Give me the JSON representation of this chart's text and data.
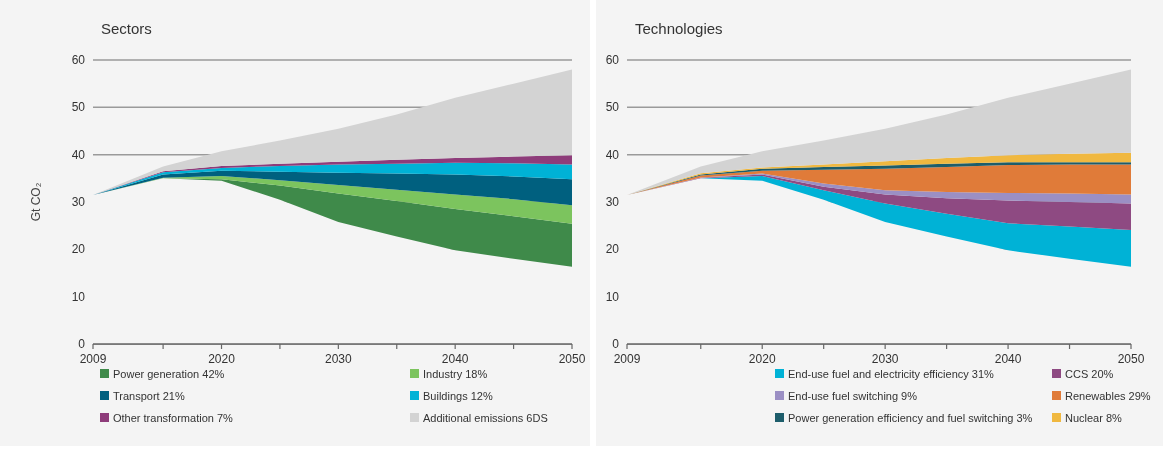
{
  "chart_data": [
    {
      "type": "area",
      "stacked": true,
      "title": "Sectors",
      "ylabel": "Gt CO₂",
      "x": [
        2009,
        2015,
        2020,
        2025,
        2030,
        2035,
        2040,
        2045,
        2050
      ],
      "xlim": [
        2009,
        2050
      ],
      "xticks": [
        2009,
        {
          "value": 2015,
          "label": null
        },
        2020,
        {
          "value": 2025,
          "label": null
        },
        2030,
        {
          "value": 2035,
          "label": null
        },
        2040,
        {
          "value": 2045,
          "label": null
        },
        2050
      ],
      "ylim": [
        0,
        60
      ],
      "yticks": [
        0,
        10,
        20,
        30,
        40,
        50,
        60
      ],
      "grid": "y",
      "legend": "bottom",
      "series": [
        {
          "color": "#f4f4f4",
          "values": [
            31.5,
            35,
            34.5,
            30.5,
            25.8,
            22.7,
            19.8,
            18,
            16.3
          ]
        },
        {
          "name": "Power generation  42%",
          "color": "#3f8a4a",
          "values": [
            0,
            0,
            0.3,
            3.0,
            6.0,
            7.5,
            8.7,
            9.0,
            9.1
          ]
        },
        {
          "name": "Industry  18%",
          "color": "#7cc45e",
          "values": [
            0,
            0.1,
            0.7,
            1.1,
            1.8,
            2.4,
            3.1,
            3.6,
            3.9
          ]
        },
        {
          "name": "Transport  21%",
          "color": "#00607f",
          "values": [
            0,
            0.7,
            1.1,
            1.8,
            2.6,
            3.4,
            4.2,
            4.8,
            5.5
          ]
        },
        {
          "name": "Buildings 12%",
          "color": "#00b2d6",
          "values": [
            0,
            0.5,
            0.6,
            1.2,
            1.7,
            2.1,
            2.5,
            2.8,
            3.1
          ]
        },
        {
          "name": "Other transformation  7%",
          "color": "#8e3c7a",
          "values": [
            0,
            0.2,
            0.4,
            0.5,
            0.6,
            0.8,
            1.0,
            1.4,
            2.0
          ]
        },
        {
          "name": "Additional emissions 6DS",
          "color": "#d3d3d3",
          "values": [
            0,
            1.0,
            3.1,
            4.9,
            7.0,
            9.6,
            12.7,
            15.4,
            18.1
          ]
        }
      ]
    },
    {
      "type": "area",
      "stacked": true,
      "title": "Technologies",
      "x": [
        2009,
        2015,
        2020,
        2025,
        2030,
        2035,
        2040,
        2045,
        2050
      ],
      "xlim": [
        2009,
        2050
      ],
      "xticks": [
        2009,
        {
          "value": 2015,
          "label": null
        },
        2020,
        {
          "value": 2025,
          "label": null
        },
        2030,
        {
          "value": 2035,
          "label": null
        },
        2040,
        {
          "value": 2045,
          "label": null
        },
        2050
      ],
      "ylim": [
        0,
        60
      ],
      "yticks": [
        0,
        10,
        20,
        30,
        40,
        50,
        60
      ],
      "grid": "y",
      "legend": "bottom",
      "series": [
        {
          "color": "#f4f4f4",
          "values": [
            31.5,
            35,
            34.5,
            30.5,
            25.8,
            22.7,
            19.8,
            18,
            16.3
          ]
        },
        {
          "name": "End-use fuel and electricity efficiency 31%",
          "color": "#00b2d6",
          "values": [
            0,
            0,
            1.0,
            2.0,
            3.9,
            4.8,
            5.7,
            6.8,
            7.8
          ]
        },
        {
          "name": "CCS 20%",
          "color": "#8e4a82",
          "values": [
            0,
            0.1,
            0.3,
            0.7,
            1.9,
            3.3,
            4.8,
            5.2,
            5.6
          ]
        },
        {
          "name": "End-use fuel switching 9%",
          "color": "#9b8fc4",
          "values": [
            0,
            0.1,
            0.2,
            0.7,
            0.9,
            1.3,
            1.6,
            1.8,
            1.9
          ]
        },
        {
          "name": "Renewables 29%",
          "color": "#e07b39",
          "values": [
            0,
            0.4,
            0.6,
            2.9,
            4.5,
            5.3,
            5.9,
            6.1,
            6.3
          ]
        },
        {
          "name": "Power generation efficiency and fuel switching 3%",
          "color": "#1d5d6b",
          "values": [
            0,
            0.2,
            0.4,
            0.6,
            0.7,
            0.7,
            0.6,
            0.5,
            0.5
          ]
        },
        {
          "name": "Nuclear 8%",
          "color": "#f0b840",
          "values": [
            0,
            0.3,
            0.3,
            0.5,
            0.9,
            1.2,
            1.5,
            1.8,
            2.0
          ]
        },
        {
          "color": "#d3d3d3",
          "values": [
            0,
            1.4,
            3.4,
            5.1,
            6.9,
            9.2,
            12.1,
            14.8,
            17.6
          ]
        }
      ]
    }
  ]
}
